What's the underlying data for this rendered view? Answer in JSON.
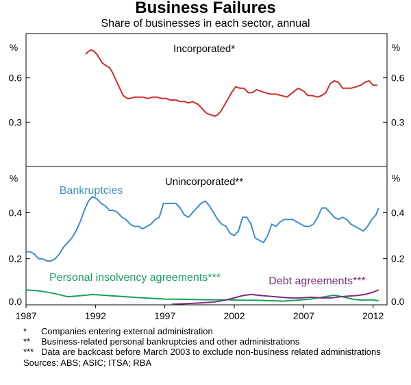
{
  "title": "Business Failures",
  "subtitle": "Share of businesses in each sector, annual",
  "chart_data": [
    {
      "type": "line",
      "panel": "Incorporated*",
      "ylabel": "%",
      "ylim": [
        0.0,
        0.9
      ],
      "yticks": [
        "0.6",
        "0.3"
      ],
      "yticks_values": [
        0.6,
        0.3
      ],
      "xlim": [
        1987,
        2013
      ],
      "series": [
        {
          "name": "Incorporated",
          "color": "#d42a2a",
          "x": [
            1991.3,
            1991.5,
            1991.7,
            1991.9,
            1992.1,
            1992.3,
            1992.5,
            1992.8,
            1993.0,
            1993.2,
            1993.5,
            1993.8,
            1994.0,
            1994.3,
            1994.5,
            1994.8,
            1995.1,
            1995.4,
            1995.8,
            1996.1,
            1996.4,
            1996.8,
            1997.1,
            1997.4,
            1997.8,
            1998.1,
            1998.4,
            1998.7,
            1999.0,
            1999.4,
            1999.7,
            2000.0,
            2000.3,
            2000.6,
            2000.8,
            2001.0,
            2001.2,
            2001.5,
            2001.8,
            2002.1,
            2002.4,
            2002.7,
            2003.0,
            2003.3,
            2003.6,
            2003.9,
            2004.2,
            2004.6,
            2005.0,
            2005.4,
            2005.8,
            2006.2,
            2006.6,
            2007.0,
            2007.3,
            2007.6,
            2008.0,
            2008.3,
            2008.6,
            2008.9,
            2009.2,
            2009.5,
            2009.8,
            2010.1,
            2010.4,
            2010.8,
            2011.1,
            2011.4,
            2011.7,
            2012.0,
            2012.3
          ],
          "values": [
            0.76,
            0.78,
            0.79,
            0.78,
            0.76,
            0.73,
            0.7,
            0.68,
            0.67,
            0.64,
            0.58,
            0.52,
            0.48,
            0.46,
            0.46,
            0.47,
            0.47,
            0.47,
            0.46,
            0.47,
            0.47,
            0.46,
            0.46,
            0.45,
            0.45,
            0.44,
            0.44,
            0.43,
            0.44,
            0.42,
            0.39,
            0.36,
            0.35,
            0.34,
            0.35,
            0.37,
            0.4,
            0.45,
            0.5,
            0.54,
            0.53,
            0.53,
            0.5,
            0.5,
            0.52,
            0.51,
            0.5,
            0.49,
            0.49,
            0.48,
            0.47,
            0.5,
            0.53,
            0.51,
            0.48,
            0.48,
            0.47,
            0.48,
            0.5,
            0.56,
            0.58,
            0.57,
            0.53,
            0.53,
            0.53,
            0.54,
            0.55,
            0.57,
            0.58,
            0.55,
            0.55
          ]
        }
      ]
    },
    {
      "type": "line",
      "panel": "Unincorporated**",
      "ylabel": "%",
      "ylim": [
        0.0,
        0.6
      ],
      "yticks": [
        "0.4",
        "0.2",
        "0.0"
      ],
      "yticks_values": [
        0.4,
        0.2,
        0.0
      ],
      "xlim": [
        1987,
        2013
      ],
      "xticks": [
        "1987",
        "1992",
        "1997",
        "2002",
        "2007",
        "2012"
      ],
      "xticks_values": [
        1987,
        1992,
        1997,
        2002,
        2007,
        2012
      ],
      "series": [
        {
          "name": "Bankruptcies",
          "color": "#3d8ccf",
          "x": [
            1987.0,
            1987.3,
            1987.6,
            1987.9,
            1988.2,
            1988.5,
            1988.8,
            1989.1,
            1989.4,
            1989.7,
            1990.0,
            1990.3,
            1990.6,
            1990.9,
            1991.2,
            1991.5,
            1991.8,
            1992.1,
            1992.4,
            1992.7,
            1993.0,
            1993.3,
            1993.6,
            1993.9,
            1994.2,
            1994.5,
            1994.8,
            1995.1,
            1995.4,
            1995.7,
            1996.0,
            1996.3,
            1996.6,
            1996.9,
            1997.2,
            1997.5,
            1997.8,
            1998.1,
            1998.4,
            1998.7,
            1999.0,
            1999.3,
            1999.6,
            1999.9,
            2000.2,
            2000.5,
            2000.8,
            2001.1,
            2001.4,
            2001.7,
            2002.0,
            2002.3,
            2002.6,
            2002.9,
            2003.2,
            2003.5,
            2003.8,
            2004.1,
            2004.4,
            2004.7,
            2005.0,
            2005.3,
            2005.6,
            2005.9,
            2006.2,
            2006.5,
            2006.8,
            2007.1,
            2007.4,
            2007.7,
            2008.0,
            2008.3,
            2008.6,
            2008.9,
            2009.2,
            2009.5,
            2009.8,
            2010.1,
            2010.4,
            2010.7,
            2011.0,
            2011.3,
            2011.6,
            2011.9,
            2012.2,
            2012.4
          ],
          "values": [
            0.23,
            0.23,
            0.22,
            0.2,
            0.2,
            0.19,
            0.19,
            0.2,
            0.22,
            0.25,
            0.27,
            0.29,
            0.32,
            0.36,
            0.41,
            0.45,
            0.47,
            0.46,
            0.44,
            0.43,
            0.41,
            0.41,
            0.4,
            0.38,
            0.37,
            0.35,
            0.34,
            0.34,
            0.33,
            0.34,
            0.35,
            0.37,
            0.38,
            0.44,
            0.44,
            0.44,
            0.44,
            0.42,
            0.39,
            0.38,
            0.4,
            0.42,
            0.44,
            0.45,
            0.43,
            0.4,
            0.37,
            0.35,
            0.34,
            0.31,
            0.3,
            0.32,
            0.38,
            0.38,
            0.35,
            0.29,
            0.28,
            0.27,
            0.3,
            0.35,
            0.34,
            0.36,
            0.37,
            0.37,
            0.37,
            0.36,
            0.35,
            0.34,
            0.34,
            0.35,
            0.38,
            0.42,
            0.42,
            0.4,
            0.38,
            0.37,
            0.38,
            0.37,
            0.35,
            0.34,
            0.33,
            0.32,
            0.34,
            0.37,
            0.39,
            0.42
          ]
        },
        {
          "name": "Personal insolvency agreements***",
          "color": "#1a9e55",
          "x": [
            1987.0,
            1988.0,
            1989.0,
            1990.0,
            1991.0,
            1991.8,
            1992.5,
            1993.5,
            1995.0,
            1997.0,
            1998.5,
            2000.0,
            2001.5,
            2002.5,
            2003.5,
            2004.5,
            2005.5,
            2006.5,
            2007.5,
            2008.5,
            2009.2,
            2009.8,
            2010.5,
            2011.2,
            2011.8,
            2012.4
          ],
          "values": [
            0.065,
            0.06,
            0.05,
            0.035,
            0.04,
            0.045,
            0.042,
            0.038,
            0.032,
            0.025,
            0.024,
            0.022,
            0.022,
            0.02,
            0.02,
            0.018,
            0.016,
            0.02,
            0.025,
            0.035,
            0.042,
            0.035,
            0.025,
            0.02,
            0.022,
            0.018
          ]
        },
        {
          "name": "Debt agreements***",
          "color": "#7b2f7d",
          "x": [
            1997.5,
            1998.5,
            1999.5,
            2000.5,
            2001.3,
            2002.0,
            2002.6,
            2003.2,
            2004.0,
            2005.0,
            2006.0,
            2006.8,
            2007.5,
            2008.3,
            2009.0,
            2009.6,
            2010.2,
            2010.8,
            2011.4,
            2012.0,
            2012.4
          ],
          "values": [
            0.003,
            0.005,
            0.008,
            0.012,
            0.02,
            0.03,
            0.04,
            0.045,
            0.04,
            0.035,
            0.03,
            0.03,
            0.033,
            0.03,
            0.03,
            0.035,
            0.038,
            0.04,
            0.045,
            0.055,
            0.065
          ]
        }
      ]
    }
  ],
  "labels": {
    "incorporated": "Incorporated*",
    "unincorporated": "Unincorporated**",
    "bankruptcies": "Bankruptcies",
    "personal": "Personal insolvency agreements***",
    "debt": "Debt agreements***",
    "pct": "%"
  },
  "notes": [
    {
      "mark": "*",
      "text": "Companies entering external administration"
    },
    {
      "mark": "**",
      "text": "Business-related personal bankruptcies and other administrations"
    },
    {
      "mark": "***",
      "text": "Data are backcast before March 2003 to exclude non-business related administrations"
    }
  ],
  "sources": "Sources: ABS; ASIC; ITSA; RBA"
}
